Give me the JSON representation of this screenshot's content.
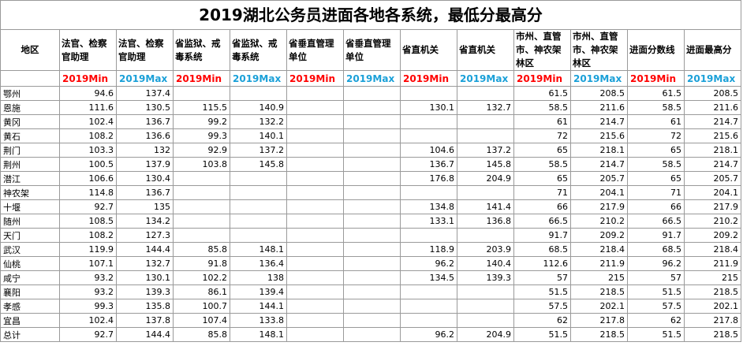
{
  "title": "2019湖北公务员进面各地各系统，最低分最高分",
  "columns": {
    "region": "地区",
    "groups": [
      "法官、检察官助理",
      "法官、检察官助理",
      "省监狱、戒毒系统",
      "省监狱、戒毒系统",
      "省垂直管理单位",
      "省垂直管理单位",
      "省直机关",
      "省直机关",
      "市州、直管市、神农架林区",
      "市州、直管市、神农架林区",
      "进面分数线",
      "进面最高分"
    ],
    "minmax": [
      "2019Min",
      "2019Max",
      "2019Min",
      "2019Max",
      "2019Min",
      "2019Max",
      "2019Min",
      "2019Max",
      "2019Min",
      "2019Max",
      "2019Min",
      "2019Max"
    ]
  },
  "rows": [
    {
      "region": "鄂州",
      "values": [
        "94.6",
        "137.4",
        "",
        "",
        "",
        "",
        "",
        "",
        "61.5",
        "208.5",
        "61.5",
        "208.5"
      ]
    },
    {
      "region": "恩施",
      "values": [
        "111.6",
        "130.5",
        "115.5",
        "140.9",
        "",
        "",
        "130.1",
        "132.7",
        "58.5",
        "211.6",
        "58.5",
        "211.6"
      ]
    },
    {
      "region": "黄冈",
      "values": [
        "102.4",
        "136.7",
        "99.2",
        "132.2",
        "",
        "",
        "",
        "",
        "61",
        "214.7",
        "61",
        "214.7"
      ]
    },
    {
      "region": "黄石",
      "values": [
        "108.2",
        "136.6",
        "99.3",
        "140.1",
        "",
        "",
        "",
        "",
        "72",
        "215.6",
        "72",
        "215.6"
      ]
    },
    {
      "region": "荆门",
      "values": [
        "103.3",
        "132",
        "92.9",
        "137.2",
        "",
        "",
        "104.6",
        "137.2",
        "65",
        "218.1",
        "65",
        "218.1"
      ]
    },
    {
      "region": "荆州",
      "values": [
        "100.5",
        "137.9",
        "103.8",
        "145.8",
        "",
        "",
        "136.7",
        "145.8",
        "58.5",
        "214.7",
        "58.5",
        "214.7"
      ]
    },
    {
      "region": "潜江",
      "values": [
        "106.6",
        "130.4",
        "",
        "",
        "",
        "",
        "176.8",
        "204.9",
        "65",
        "205.7",
        "65",
        "205.7"
      ]
    },
    {
      "region": "神农架",
      "values": [
        "114.8",
        "136.7",
        "",
        "",
        "",
        "",
        "",
        "",
        "71",
        "204.1",
        "71",
        "204.1"
      ]
    },
    {
      "region": "十堰",
      "values": [
        "92.7",
        "135",
        "",
        "",
        "",
        "",
        "134.8",
        "141.4",
        "66",
        "217.9",
        "66",
        "217.9"
      ]
    },
    {
      "region": "随州",
      "values": [
        "108.5",
        "134.2",
        "",
        "",
        "",
        "",
        "133.1",
        "136.8",
        "66.5",
        "210.2",
        "66.5",
        "210.2"
      ]
    },
    {
      "region": "天门",
      "values": [
        "108.2",
        "127.3",
        "",
        "",
        "",
        "",
        "",
        "",
        "91.7",
        "209.2",
        "91.7",
        "209.2"
      ]
    },
    {
      "region": "武汉",
      "values": [
        "119.9",
        "144.4",
        "85.8",
        "148.1",
        "",
        "",
        "118.9",
        "203.9",
        "68.5",
        "218.4",
        "68.5",
        "218.4"
      ]
    },
    {
      "region": "仙桃",
      "values": [
        "107.1",
        "132.7",
        "91.8",
        "136.4",
        "",
        "",
        "96.2",
        "140.4",
        "112.6",
        "211.9",
        "96.2",
        "211.9"
      ]
    },
    {
      "region": "咸宁",
      "values": [
        "93.2",
        "130.1",
        "102.2",
        "138",
        "",
        "",
        "134.5",
        "139.3",
        "57",
        "215",
        "57",
        "215"
      ]
    },
    {
      "region": "襄阳",
      "values": [
        "93.2",
        "139.3",
        "86.1",
        "139.4",
        "",
        "",
        "",
        "",
        "51.5",
        "218.5",
        "51.5",
        "218.5"
      ]
    },
    {
      "region": "孝感",
      "values": [
        "99.3",
        "135.8",
        "100.7",
        "144.1",
        "",
        "",
        "",
        "",
        "57.5",
        "202.1",
        "57.5",
        "202.1"
      ]
    },
    {
      "region": "宜昌",
      "values": [
        "102.4",
        "137.8",
        "107.4",
        "133.8",
        "",
        "",
        "",
        "",
        "62",
        "217.8",
        "62",
        "217.8"
      ]
    },
    {
      "region": "总计",
      "values": [
        "92.7",
        "144.4",
        "85.8",
        "148.1",
        "",
        "",
        "96.2",
        "204.9",
        "51.5",
        "218.5",
        "51.5",
        "218.5"
      ]
    }
  ],
  "colors": {
    "min": "#ff0000",
    "max": "#1aa0d8",
    "grid": "#9a9a9a"
  }
}
